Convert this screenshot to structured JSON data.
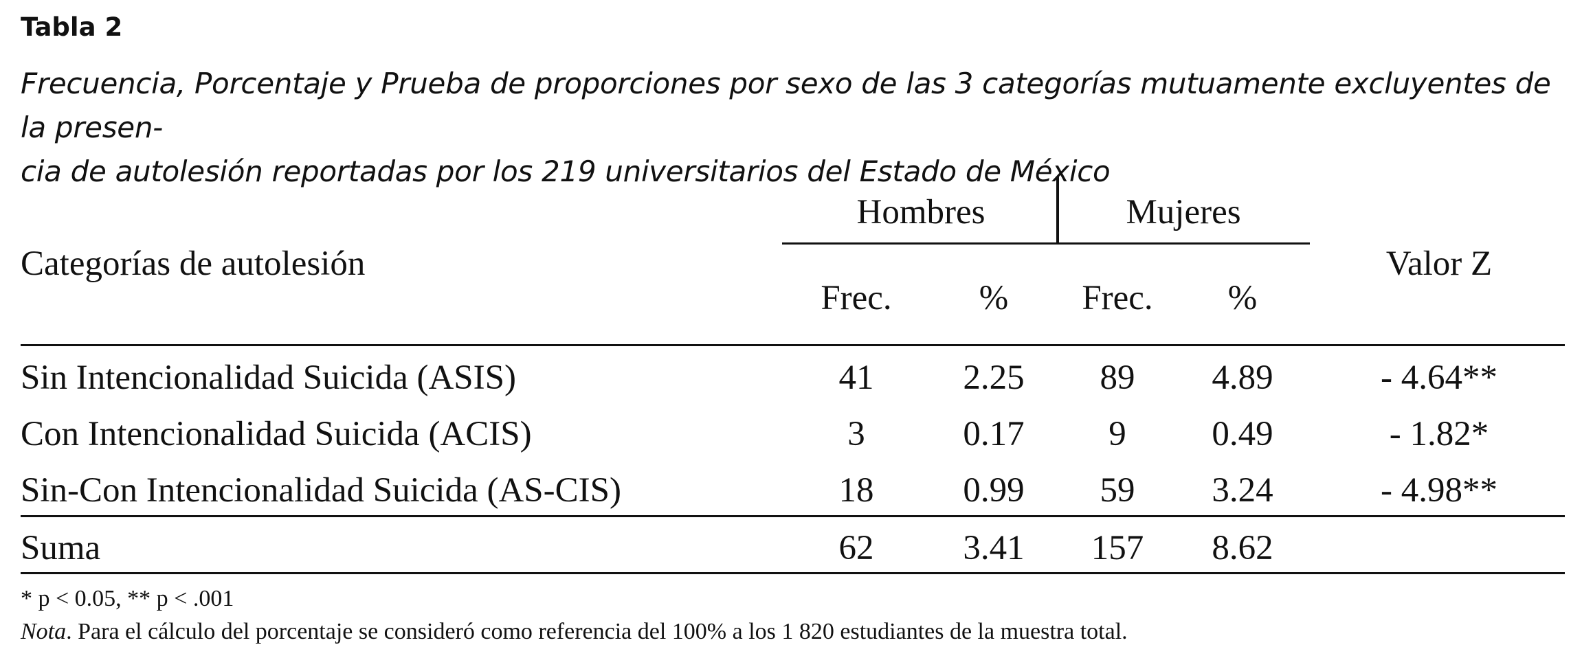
{
  "table": {
    "label": "Tabla 2",
    "caption_line1": "Frecuencia, Porcentaje y Prueba de proporciones por sexo de las 3 categorías mutuamente excluyentes de la presen-",
    "caption_line2": "cia de autolesión reportadas por los 219 universitarios del Estado de México",
    "header": {
      "category": "Categorías de autolesión",
      "group_men": "Hombres",
      "group_women": "Mujeres",
      "freq_men": "Frec.",
      "pct_men": "%",
      "freq_women": "Frec.",
      "pct_women": "%",
      "z": "Valor Z"
    },
    "rows": [
      {
        "name": "Sin Intencionalidad Suicida",
        "abbr": "(ASIS)",
        "freq_men": "41",
        "pct_men": "2.25",
        "freq_women": "89",
        "pct_women": "4.89",
        "z": "- 4.64**"
      },
      {
        "name": "Con Intencionalidad Suicida",
        "abbr": "(ACIS)",
        "freq_men": "3",
        "pct_men": "0.17",
        "freq_women": "9",
        "pct_women": "0.49",
        "z": "- 1.82*"
      },
      {
        "name": "Sin-Con Intencionalidad Suicida",
        "abbr": "(AS-CIS)",
        "freq_men": "18",
        "pct_men": "0.99",
        "freq_women": "59",
        "pct_women": "3.24",
        "z": "- 4.98**"
      }
    ],
    "total": {
      "name": "Suma",
      "freq_men": "62",
      "pct_men": "3.41",
      "freq_women": "157",
      "pct_women": "8.62"
    },
    "footnote": "* p < 0.05, ** p < .001",
    "note_label": "Nota",
    "note_text": ". Para el cálculo del porcentaje se consideró como referencia del 100% a los 1 820 estudiantes de la muestra total."
  }
}
